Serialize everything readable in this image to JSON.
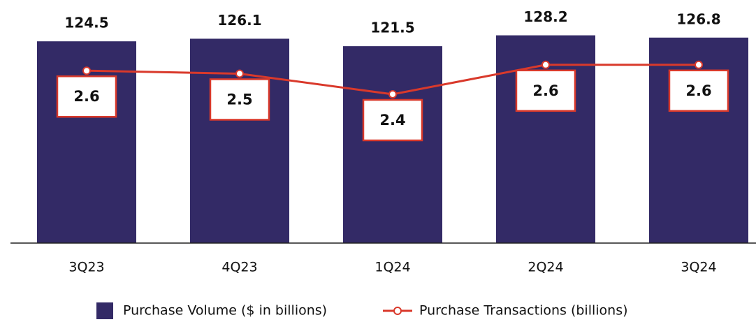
{
  "chart_data": {
    "type": "bar-line",
    "categories": [
      "3Q23",
      "4Q23",
      "1Q24",
      "2Q24",
      "3Q24"
    ],
    "series": [
      {
        "name": "Purchase Volume ($ in billions)",
        "type": "bar",
        "color": "#332a66",
        "values": [
          124.5,
          126.1,
          121.5,
          128.2,
          126.8
        ]
      },
      {
        "name": "Purchase Transactions (billions)",
        "type": "line",
        "axis": "y2",
        "color": "#d9392b",
        "values": [
          2.56,
          2.54,
          2.4,
          2.6,
          2.6
        ],
        "value_labels": [
          "2.6",
          "2.5",
          "2.4",
          "2.6",
          "2.6"
        ]
      }
    ],
    "ylim": [
      0,
      150
    ],
    "y2lim": [
      1.39,
      3.04
    ]
  }
}
